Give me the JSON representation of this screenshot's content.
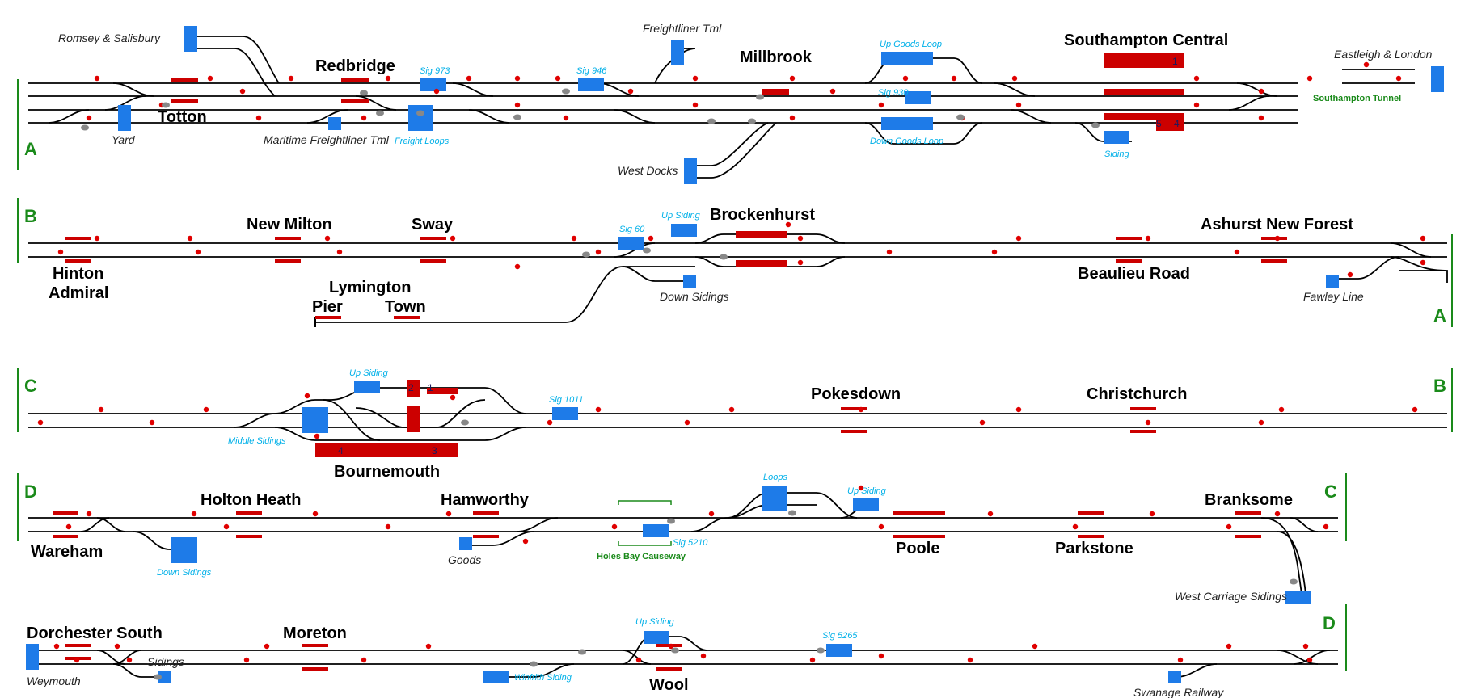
{
  "title": "",
  "colors": {
    "track": "#000000",
    "platform": "#cc0000",
    "signal": "#e00000",
    "points": "#888888",
    "siding_block": "#1e7be8",
    "section_marker": "#1a8a1a",
    "small_label": "#00b0e8"
  },
  "sections": {
    "A": "A",
    "B": "B",
    "C": "C",
    "D": "D"
  },
  "stations": {
    "southampton_central": "Southampton Central",
    "millbrook": "Millbrook",
    "redbridge": "Redbridge",
    "totton": "Totton",
    "brockenhurst": "Brockenhurst",
    "new_milton": "New Milton",
    "sway": "Sway",
    "hinton_admiral_1": "Hinton",
    "hinton_admiral_2": "Admiral",
    "ashurst": "Ashurst New Forest",
    "beaulieu_road": "Beaulieu Road",
    "lymington": "Lymington",
    "pier": "Pier",
    "town": "Town",
    "pokesdown": "Pokesdown",
    "christchurch": "Christchurch",
    "bournemouth": "Bournemouth",
    "holton_heath": "Holton Heath",
    "hamworthy": "Hamworthy",
    "branksome": "Branksome",
    "wareham": "Wareham",
    "poole": "Poole",
    "parkstone": "Parkstone",
    "dorchester_south": "Dorchester South",
    "moreton": "Moreton",
    "wool": "Wool"
  },
  "places": {
    "romsey": "Romsey & Salisbury",
    "eastleigh": "Eastleigh & London",
    "freightliner_tml": "Freightliner Tml",
    "maritime": "Maritime Freightliner Tml",
    "west_docks": "West Docks",
    "yard": "Yard",
    "down_sidings_b": "Down Sidings",
    "fawley": "Fawley Line",
    "goods": "Goods",
    "west_carriage": "West Carriage Sidings",
    "weymouth": "Weymouth",
    "sidings_d": "Sidings",
    "swanage": "Swanage Railway"
  },
  "small_labels": {
    "sig973": "Sig 973",
    "sig946": "Sig 946",
    "up_goods_loop": "Up Goods Loop",
    "sig930": "Sig 930",
    "down_goods_loop": "Down Goods Loop",
    "freight_loops": "Freight Loops",
    "siding_a": "Siding",
    "sig60": "Sig 60",
    "up_siding_b": "Up Siding",
    "up_siding_c": "Up Siding",
    "middle_sidings": "Middle Sidings",
    "sig1011": "Sig 1011",
    "loops": "Loops",
    "up_siding_poole": "Up Siding",
    "down_sidings_d": "Down Sidings",
    "sig5210": "Sig 5210",
    "up_siding_wool": "Up Siding",
    "sig5265": "Sig 5265",
    "winfrith": "Winfrith Siding"
  },
  "green_labels": {
    "southampton_tunnel": "Southampton Tunnel",
    "holes_bay": "Holes Bay Causeway"
  },
  "platform_numbers": {
    "sc1": "1",
    "sc4": "4",
    "sc5": "5",
    "bm1": "1",
    "bm2": "2",
    "bm3": "3",
    "bm4": "4"
  }
}
